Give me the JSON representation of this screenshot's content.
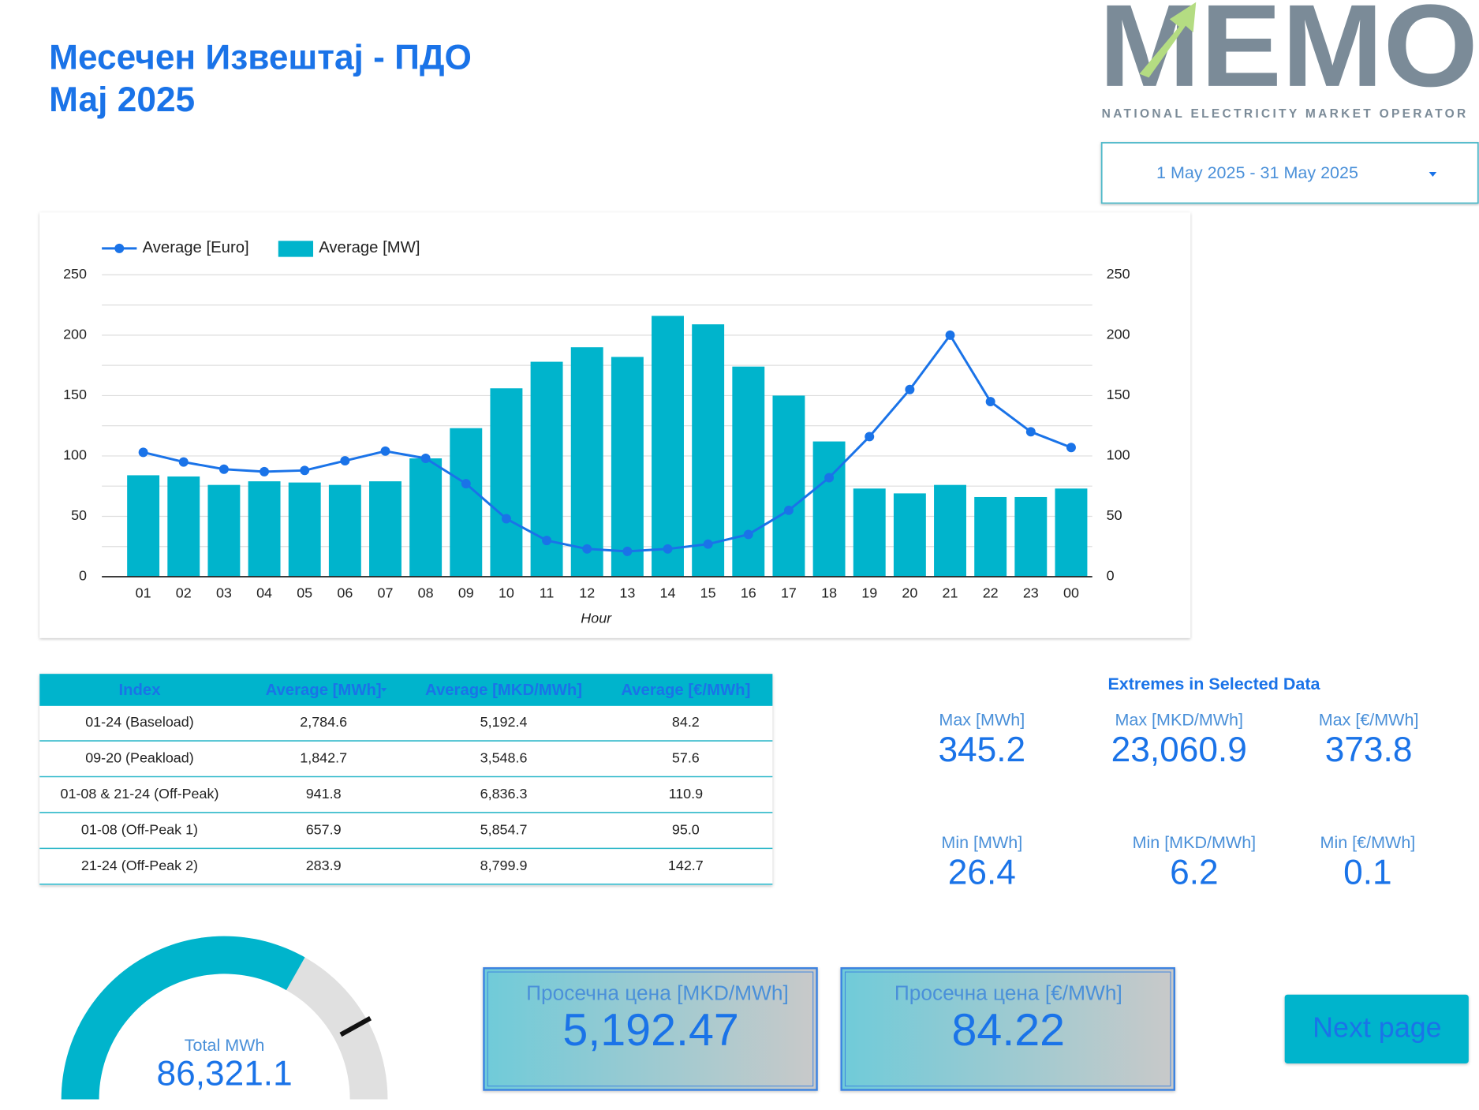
{
  "header": {
    "title": "Месечен Извештај - ПДО",
    "subtitle": "Мај 2025"
  },
  "logo": {
    "name": "MEMO",
    "tagline": "NATIONAL ELECTRICITY MARKET OPERATOR"
  },
  "date_range": "1 May 2025 - 31 May 2025",
  "chart_data": {
    "type": "bar",
    "x_label": "Hour",
    "categories": [
      "01",
      "02",
      "03",
      "04",
      "05",
      "06",
      "07",
      "08",
      "09",
      "10",
      "11",
      "12",
      "13",
      "14",
      "15",
      "16",
      "17",
      "18",
      "19",
      "20",
      "21",
      "22",
      "23",
      "00"
    ],
    "series": [
      {
        "name": "Average [Euro]",
        "type": "line",
        "color": "#1a73e8",
        "axis": "y2",
        "values": [
          103,
          95,
          89,
          87,
          88,
          96,
          104,
          98,
          77,
          48,
          30,
          23,
          21,
          23,
          27,
          35,
          55,
          82,
          116,
          155,
          200,
          145,
          120,
          107
        ]
      },
      {
        "name": "Average [MW]",
        "type": "bar",
        "color": "#00b4cc",
        "values": [
          84,
          83,
          76,
          79,
          78,
          76,
          79,
          98,
          123,
          156,
          178,
          190,
          182,
          216,
          209,
          174,
          150,
          112,
          73,
          69,
          76,
          66,
          66,
          73
        ]
      }
    ],
    "ylim": [
      0,
      250
    ],
    "yticks": [
      0,
      50,
      100,
      150,
      200,
      250
    ],
    "y2lim": [
      0,
      250
    ],
    "y2ticks": [
      0,
      50,
      100,
      150,
      200,
      250
    ],
    "grid_minor_ticks": [
      25,
      75,
      125,
      175,
      225
    ],
    "grid": true,
    "legend": "top-left"
  },
  "table": {
    "columns": [
      "Index",
      "Average [MWh]",
      "Average [MKD/MWh]",
      "Average [€/MWh]"
    ],
    "rows": [
      [
        "01-24 (Baseload)",
        "2,784.6",
        "5,192.4",
        "84.2"
      ],
      [
        "09-20 (Peakload)",
        "1,842.7",
        "3,548.6",
        "57.6"
      ],
      [
        "01-08 & 21-24 (Off-Peak)",
        "941.8",
        "6,836.3",
        "110.9"
      ],
      [
        "01-08 (Off-Peak 1)",
        "657.9",
        "5,854.7",
        "95.0"
      ],
      [
        "21-24 (Off-Peak 2)",
        "283.9",
        "8,799.9",
        "142.7"
      ]
    ]
  },
  "extremes": {
    "title": "Extremes in Selected Data",
    "max": [
      {
        "label": "Max [MWh]",
        "value": "345.2"
      },
      {
        "label": "Max [MKD/MWh]",
        "value": "23,060.9"
      },
      {
        "label": "Max [€/MWh]",
        "value": "373.8"
      }
    ],
    "min": [
      {
        "label": "Min [MWh]",
        "value": "26.4"
      },
      {
        "label": "Min [MKD/MWh]",
        "value": "6.2"
      },
      {
        "label": "Min [€/MWh]",
        "value": "0.1"
      }
    ]
  },
  "gauge": {
    "label": "Total MWh",
    "value": 86321.1,
    "value_label": "86,321.1",
    "min": 0,
    "max": 130000,
    "target": 109000
  },
  "cards": [
    {
      "label": "Просечна цена [MKD/MWh]",
      "value": "5,192.47"
    },
    {
      "label": "Просечна цена [€/MWh]",
      "value": "84.22"
    }
  ],
  "button": "Next page"
}
